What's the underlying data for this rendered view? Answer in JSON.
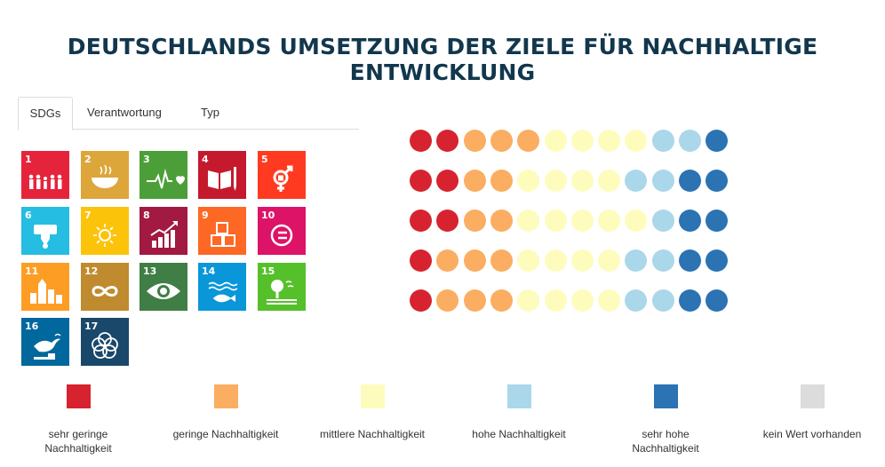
{
  "title": "DEUTSCHLANDS UMSETZUNG DER ZIELE FÜR NACHHALTIGE ENTWICKLUNG",
  "tabs": [
    {
      "label": "SDGs",
      "active": true
    },
    {
      "label": "Verantwortung",
      "active": false
    },
    {
      "label": "Typ",
      "active": false
    }
  ],
  "colors": {
    "sehr_gering": "#d7232f",
    "gering": "#fbad61",
    "mittel": "#fefcbd",
    "hoch": "#abd7ea",
    "sehr_hoch": "#2b73b3",
    "kein_wert": "#dcdcdc"
  },
  "sdg_goals": [
    {
      "number": "1",
      "color": "#e5243b",
      "icon": "people-icon"
    },
    {
      "number": "2",
      "color": "#dda63a",
      "icon": "bowl-icon"
    },
    {
      "number": "3",
      "color": "#4c9f38",
      "icon": "heartbeat-icon"
    },
    {
      "number": "4",
      "color": "#c5192d",
      "icon": "book-icon"
    },
    {
      "number": "5",
      "color": "#ff3a21",
      "icon": "gender-icon"
    },
    {
      "number": "6",
      "color": "#26bde2",
      "icon": "water-drop-icon"
    },
    {
      "number": "7",
      "color": "#fcc30b",
      "icon": "sun-icon"
    },
    {
      "number": "8",
      "color": "#a21942",
      "icon": "growth-chart-icon"
    },
    {
      "number": "9",
      "color": "#fd6925",
      "icon": "cubes-icon"
    },
    {
      "number": "10",
      "color": "#dd1367",
      "icon": "equality-icon"
    },
    {
      "number": "11",
      "color": "#fd9d24",
      "icon": "city-icon"
    },
    {
      "number": "12",
      "color": "#bf8b2e",
      "icon": "infinity-icon"
    },
    {
      "number": "13",
      "color": "#3f7e44",
      "icon": "eye-globe-icon"
    },
    {
      "number": "14",
      "color": "#0a97d9",
      "icon": "fish-icon"
    },
    {
      "number": "15",
      "color": "#56c02b",
      "icon": "tree-icon"
    },
    {
      "number": "16",
      "color": "#00689d",
      "icon": "dove-icon"
    },
    {
      "number": "17",
      "color": "#19486a",
      "icon": "rings-icon"
    }
  ],
  "dot_matrix": [
    [
      "sehr_gering",
      "sehr_gering",
      "gering",
      "gering",
      "gering",
      "mittel",
      "mittel",
      "mittel",
      "mittel",
      "hoch",
      "hoch",
      "sehr_hoch"
    ],
    [
      "sehr_gering",
      "sehr_gering",
      "gering",
      "gering",
      "mittel",
      "mittel",
      "mittel",
      "mittel",
      "hoch",
      "hoch",
      "sehr_hoch",
      "sehr_hoch"
    ],
    [
      "sehr_gering",
      "sehr_gering",
      "gering",
      "gering",
      "mittel",
      "mittel",
      "mittel",
      "mittel",
      "mittel",
      "hoch",
      "sehr_hoch",
      "sehr_hoch"
    ],
    [
      "sehr_gering",
      "gering",
      "gering",
      "gering",
      "mittel",
      "mittel",
      "mittel",
      "mittel",
      "hoch",
      "hoch",
      "sehr_hoch",
      "sehr_hoch"
    ],
    [
      "sehr_gering",
      "gering",
      "gering",
      "gering",
      "mittel",
      "mittel",
      "mittel",
      "mittel",
      "hoch",
      "hoch",
      "sehr_hoch",
      "sehr_hoch"
    ]
  ],
  "legend": [
    {
      "key": "sehr_gering",
      "label": "sehr geringe Nachhaltigkeit"
    },
    {
      "key": "gering",
      "label": "geringe Nachhaltigkeit"
    },
    {
      "key": "mittel",
      "label": "mittlere Nachhaltigkeit"
    },
    {
      "key": "hoch",
      "label": "hohe Nachhaltigkeit"
    },
    {
      "key": "sehr_hoch",
      "label": "sehr hohe Nachhaltigkeit"
    },
    {
      "key": "kein_wert",
      "label": "kein Wert vorhanden"
    }
  ]
}
